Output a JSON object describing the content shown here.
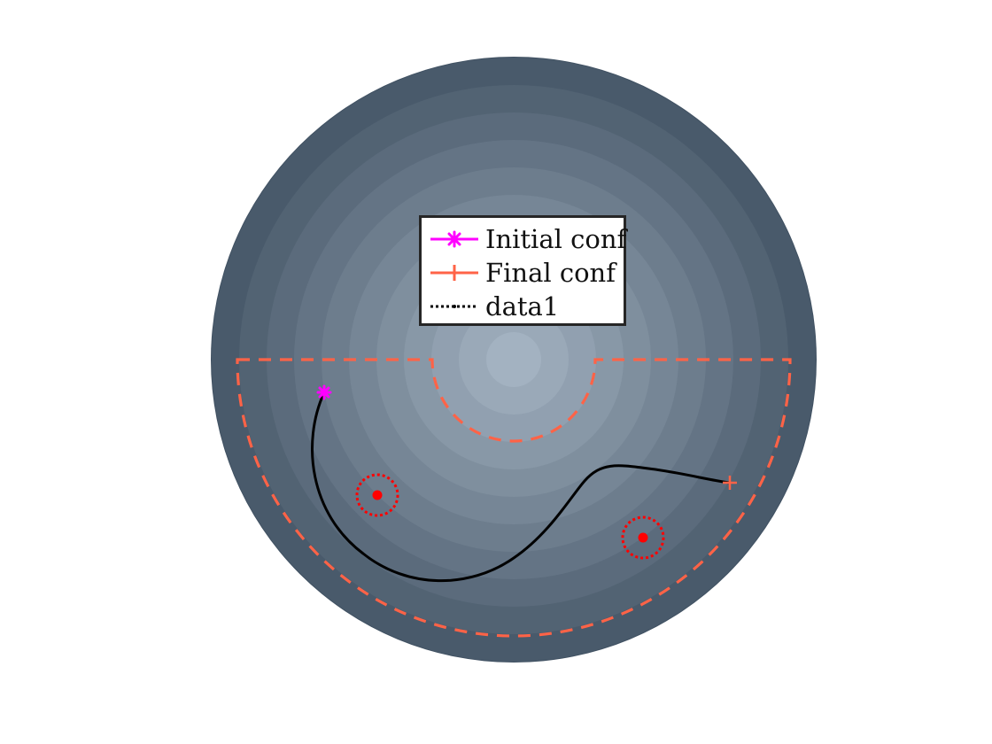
{
  "legend": {
    "entries": [
      {
        "label": "Initial conf",
        "color": "#ff00ff",
        "marker": "asterisk-marker",
        "line": "solid"
      },
      {
        "label": "Final conf",
        "color": "#ff6347",
        "marker": "plus-marker",
        "line": "solid"
      },
      {
        "label": "data1",
        "color": "#000000",
        "marker": "point-marker",
        "line": "dotted"
      }
    ]
  },
  "colors": {
    "disk_inner": "#a3b2c1",
    "disk_outer": "#405162",
    "boundary": "#ff6347",
    "path": "#000000",
    "obstacle": "#ff0000",
    "start_marker": "#ff00ff"
  }
}
